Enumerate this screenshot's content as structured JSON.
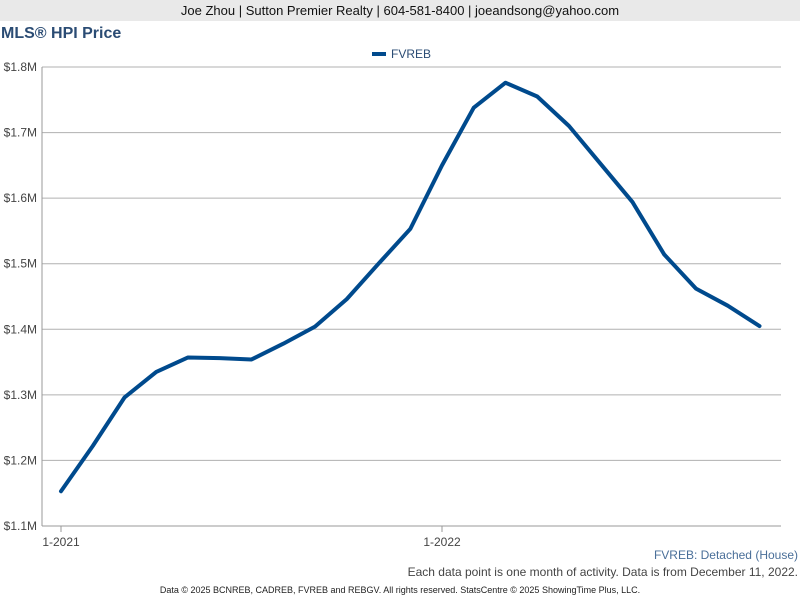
{
  "header": {
    "text": "Joe Zhou | Sutton Premier Realty | 604-581-8400 | joeandsong@yahoo.com"
  },
  "chart_data": {
    "type": "line",
    "title": "MLS® HPI Price",
    "xlabel": "",
    "ylabel": "",
    "ylim": [
      1100000,
      1800000
    ],
    "y_ticks": [
      "$1.1M",
      "$1.2M",
      "$1.3M",
      "$1.4M",
      "$1.5M",
      "$1.6M",
      "$1.7M",
      "$1.8M"
    ],
    "x_tick_labels": [
      {
        "label": "1-2021",
        "index": 0
      },
      {
        "label": "1-2022",
        "index": 12
      }
    ],
    "grid": true,
    "legend_position": "top-center",
    "x": [
      "1-2021",
      "2-2021",
      "3-2021",
      "4-2021",
      "5-2021",
      "6-2021",
      "7-2021",
      "8-2021",
      "9-2021",
      "10-2021",
      "11-2021",
      "12-2021",
      "1-2022",
      "2-2022",
      "3-2022",
      "4-2022",
      "5-2022",
      "6-2022",
      "7-2022",
      "8-2022",
      "9-2022",
      "10-2022",
      "11-2022"
    ],
    "series": [
      {
        "name": "FVREB",
        "color": "#004a8d",
        "values": [
          1153000,
          1222000,
          1296000,
          1335000,
          1357000,
          1356000,
          1354000,
          1378000,
          1404000,
          1446000,
          1500000,
          1553000,
          1650000,
          1738000,
          1776000,
          1755000,
          1710000,
          1652000,
          1594000,
          1514000,
          1462000,
          1436000,
          1405000
        ]
      }
    ]
  },
  "notes": {
    "series_label": "FVREB: Detached (House)",
    "data_note": "Each data point is one month of activity. Data is from December 11, 2022."
  },
  "footer": {
    "text": "Data © 2025 BCNREB, CADREB, FVREB and REBGV. All rights reserved. StatsCentre © 2025 ShowingTime Plus, LLC."
  },
  "colors": {
    "title": "#2b4c74",
    "series": "#004a8d",
    "grid": "#b0b0b0"
  }
}
